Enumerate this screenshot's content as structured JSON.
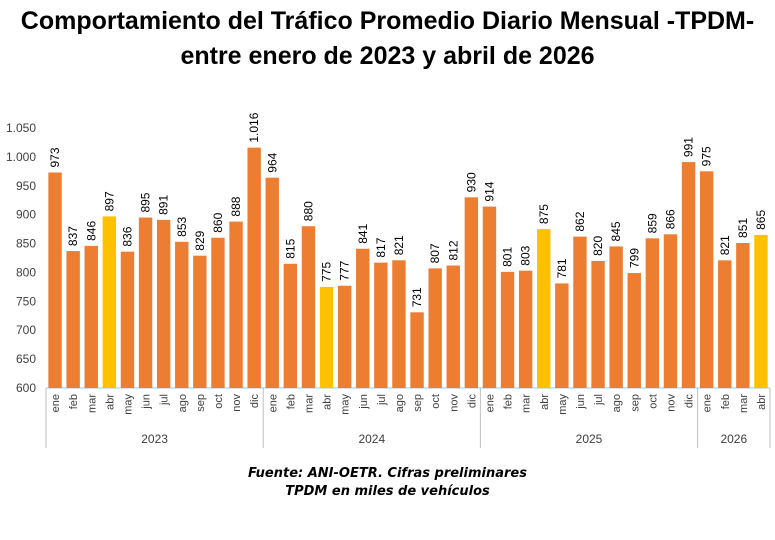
{
  "chart_data": {
    "type": "bar",
    "title": [
      "Comportamiento del Tráfico Promedio Diario Mensual -TPDM-",
      "entre enero de 2023 y abril de 2026"
    ],
    "ylim": [
      600,
      1050
    ],
    "yticks": [
      "600",
      "650",
      "700",
      "750",
      "800",
      "850",
      "900",
      "950",
      "1.000",
      "1.050"
    ],
    "groups": [
      {
        "year": "2023",
        "months": [
          "ene",
          "feb",
          "mar",
          "abr",
          "may",
          "jun",
          "jul",
          "ago",
          "sep",
          "oct",
          "nov",
          "dic"
        ],
        "values": [
          973,
          837,
          846,
          897,
          836,
          895,
          891,
          853,
          829,
          860,
          888,
          1016
        ],
        "labels": [
          "973",
          "837",
          "846",
          "897",
          "836",
          "895",
          "891",
          "853",
          "829",
          "860",
          "888",
          "1.016"
        ]
      },
      {
        "year": "2024",
        "months": [
          "ene",
          "feb",
          "mar",
          "abr",
          "may",
          "jun",
          "jul",
          "ago",
          "sep",
          "oct",
          "nov",
          "dic"
        ],
        "values": [
          964,
          815,
          880,
          775,
          777,
          841,
          817,
          821,
          731,
          807,
          812,
          930
        ],
        "labels": [
          "964",
          "815",
          "880",
          "775",
          "777",
          "841",
          "817",
          "821",
          "731",
          "807",
          "812",
          "930"
        ]
      },
      {
        "year": "2025",
        "months": [
          "ene",
          "feb",
          "mar",
          "abr",
          "may",
          "jun",
          "jul",
          "ago",
          "sep",
          "oct",
          "nov",
          "dic"
        ],
        "values": [
          914,
          801,
          803,
          875,
          781,
          862,
          820,
          845,
          799,
          859,
          866,
          991
        ],
        "labels": [
          "914",
          "801",
          "803",
          "875",
          "781",
          "862",
          "820",
          "845",
          "799",
          "859",
          "866",
          "991"
        ]
      },
      {
        "year": "2026",
        "months": [
          "ene",
          "feb",
          "mar",
          "abr"
        ],
        "values": [
          975,
          821,
          851,
          865
        ],
        "labels": [
          "975",
          "821",
          "851",
          "865"
        ]
      }
    ],
    "highlight_month": "abr",
    "colors": {
      "bar": "#ED7D31",
      "highlight": "#FFC000"
    },
    "grid": false,
    "legend": "none"
  },
  "footer": {
    "source": "Fuente: ANI-OETR. Cifras preliminares",
    "unit_note": "TPDM en miles de vehículos"
  }
}
